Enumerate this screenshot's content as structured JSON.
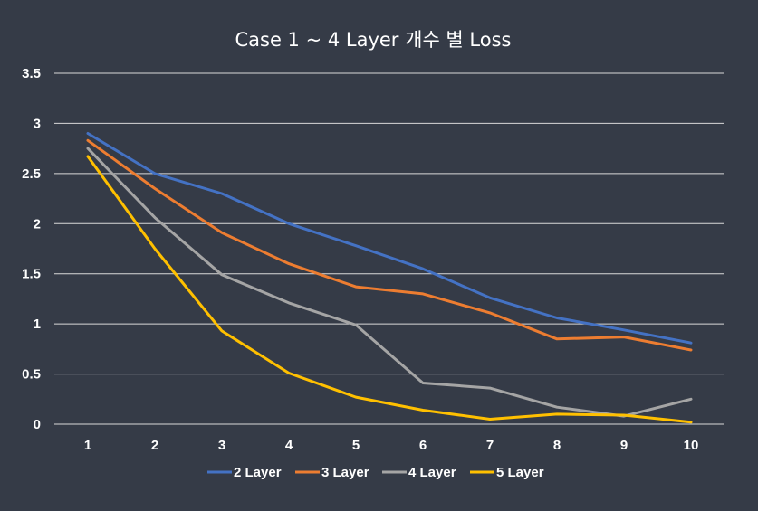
{
  "chart_data": {
    "type": "line",
    "title": "Case 1 ~ 4 Layer 개수 별 Loss",
    "xlabel": "",
    "ylabel": "",
    "x": [
      1,
      2,
      3,
      4,
      5,
      6,
      7,
      8,
      9,
      10
    ],
    "x_tick_labels": [
      "1",
      "2",
      "3",
      "4",
      "5",
      "6",
      "7",
      "8",
      "9",
      "10"
    ],
    "ylim": [
      0,
      3.5
    ],
    "y_ticks": [
      0,
      0.5,
      1,
      1.5,
      2,
      2.5,
      3,
      3.5
    ],
    "y_tick_labels": [
      "0",
      "0.5",
      "1",
      "1.5",
      "2",
      "2.5",
      "3",
      "3.5"
    ],
    "grid": true,
    "legend_position": "bottom",
    "series": [
      {
        "name": "2 Layer",
        "color": "#4472C4",
        "values": [
          2.9,
          2.5,
          2.3,
          2.0,
          1.78,
          1.55,
          1.26,
          1.06,
          0.94,
          0.81
        ]
      },
      {
        "name": "3 Layer",
        "color": "#ED7D31",
        "values": [
          2.83,
          2.35,
          1.91,
          1.6,
          1.37,
          1.3,
          1.11,
          0.85,
          0.87,
          0.74
        ]
      },
      {
        "name": "4 Layer",
        "color": "#A5A5A5",
        "values": [
          2.75,
          2.06,
          1.49,
          1.21,
          0.99,
          0.41,
          0.36,
          0.17,
          0.08,
          0.25
        ]
      },
      {
        "name": "5 Layer",
        "color": "#FFC000",
        "values": [
          2.67,
          1.75,
          0.93,
          0.51,
          0.27,
          0.14,
          0.05,
          0.1,
          0.09,
          0.02
        ]
      }
    ]
  },
  "colors": {
    "background": "#353B47",
    "text": "#FFFFFF",
    "gridline": "#D9D9D9"
  }
}
